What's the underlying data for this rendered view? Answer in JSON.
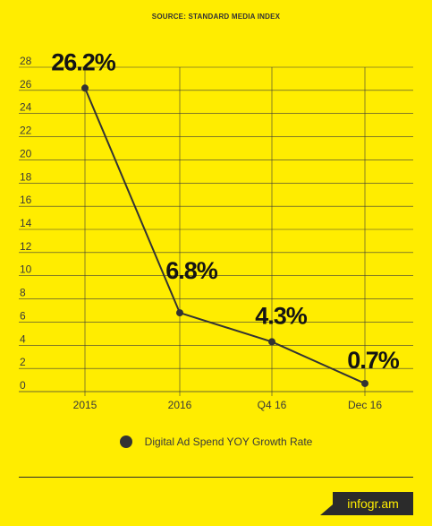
{
  "source": "SOURCE:  STANDARD MEDIA INDEX",
  "brand": "infogr.am",
  "chart_data": {
    "type": "line",
    "x": [
      "2015",
      "2016",
      "Q4 16",
      "Dec 16"
    ],
    "series": [
      {
        "name": "Digital Ad Spend YOY Growth Rate",
        "values": [
          26.2,
          6.8,
          4.3,
          0.7
        ]
      }
    ],
    "data_labels": [
      "26.2%",
      "6.8%",
      "4.3%",
      "0.7%"
    ],
    "ylim": [
      0,
      28
    ],
    "yticks": [
      0,
      2,
      4,
      6,
      8,
      10,
      12,
      14,
      16,
      18,
      20,
      22,
      24,
      26,
      28
    ],
    "grid": true,
    "legend_position": "bottom-center",
    "colors": {
      "background": "#FFED00",
      "line": "#333333",
      "grid": "#3a3a3a"
    }
  }
}
